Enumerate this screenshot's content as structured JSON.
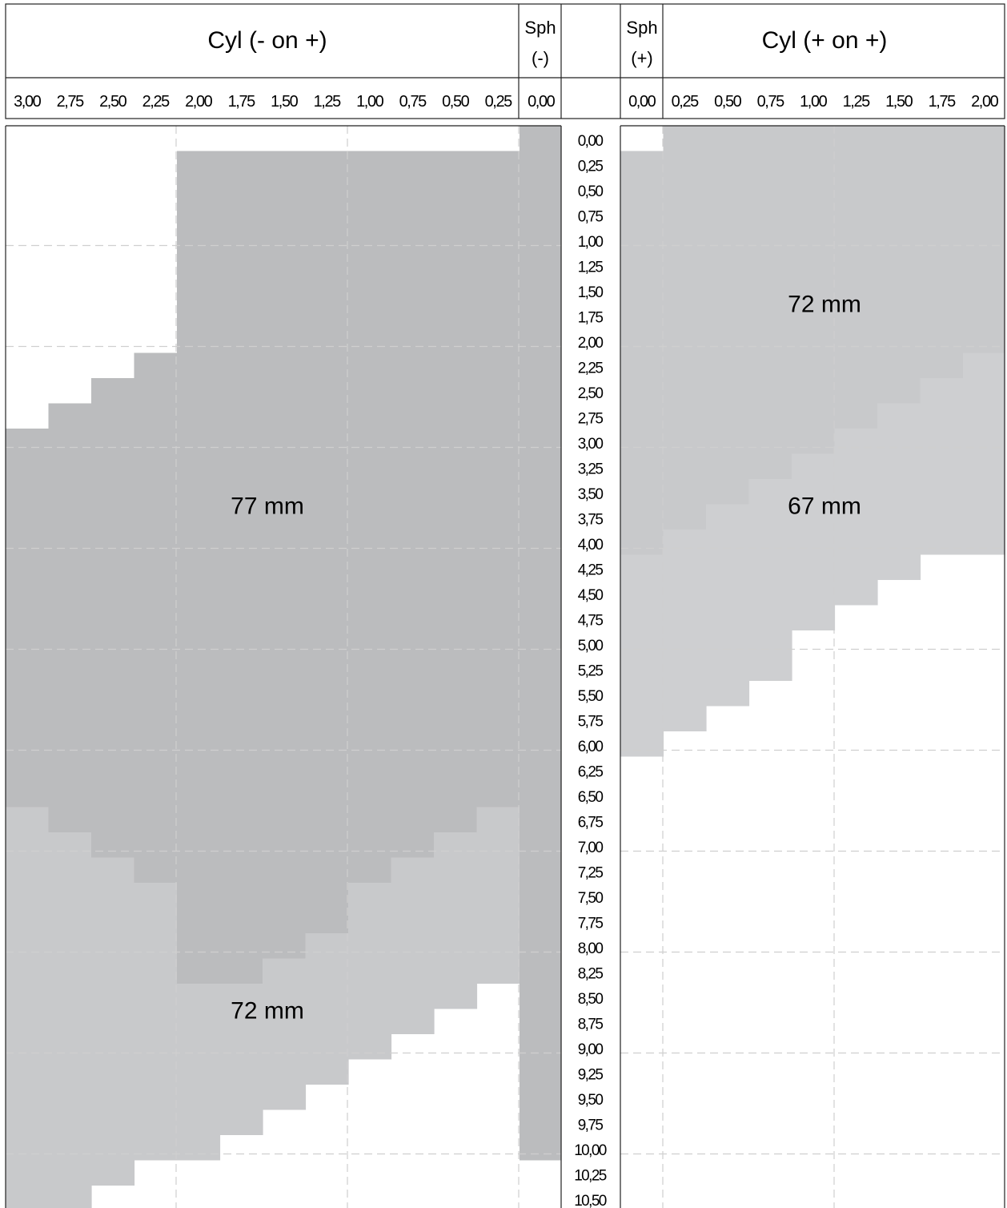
{
  "chart_data": {
    "type": "heatmap",
    "header": {
      "left_title": "Cyl (- on +)",
      "left_sph": [
        "Sph",
        "(-)"
      ],
      "right_sph": [
        "Sph",
        "(+)"
      ],
      "right_title": "Cyl (+ on +)"
    },
    "left_cyl_ticks": [
      "3,00",
      "2,75",
      "2,50",
      "2,25",
      "2,00",
      "1,75",
      "1,50",
      "1,25",
      "1,00",
      "0,75",
      "0,50",
      "0,25",
      "0,00"
    ],
    "right_cyl_ticks": [
      "0,00",
      "0,25",
      "0,50",
      "0,75",
      "1,00",
      "1,25",
      "1,50",
      "1,75",
      "2,00"
    ],
    "sph_ticks": [
      "0,00",
      "0,25",
      "0,50",
      "0,75",
      "1,00",
      "1,25",
      "1,50",
      "1,75",
      "2,00",
      "2,25",
      "2,50",
      "2,75",
      "3,00",
      "3,25",
      "3,50",
      "3,75",
      "4,00",
      "4,25",
      "4,50",
      "4,75",
      "5,00",
      "5,25",
      "5,50",
      "5,75",
      "6,00",
      "6,25",
      "6,50",
      "6,75",
      "7,00",
      "7,25",
      "7,50",
      "7,75",
      "8,00",
      "8,25",
      "8,50",
      "8,75",
      "9,00",
      "9,25",
      "9,50",
      "9,75",
      "10,00",
      "10,25",
      "10,50"
    ],
    "zones": [
      {
        "name": "77 mm",
        "color": "#bbbcbe"
      },
      {
        "name": "72 mm",
        "color": "#c8c9cb"
      },
      {
        "name": "67 mm",
        "color": "#cecfd1"
      }
    ],
    "left_panel": {
      "labels": [
        {
          "text": "77 mm",
          "cyl": 1.5,
          "sph": 3.75
        },
        {
          "text": "72 mm",
          "cyl": 1.5,
          "sph": 8.75
        }
      ],
      "zone_77_max_sph": [
        6.5,
        6.75,
        7.0,
        7.25,
        8.25,
        8.25,
        8.0,
        7.75,
        7.25,
        7.0,
        6.75,
        6.5,
        10.0
      ],
      "zone_77_min_sph": [
        3.0,
        2.75,
        2.5,
        2.25,
        0.25,
        0.25,
        0.25,
        0.25,
        0.25,
        0.25,
        0.25,
        0.25,
        0.0
      ],
      "zone_72_max_sph": [
        10.5,
        10.5,
        10.25,
        10.0,
        10.0,
        9.75,
        9.5,
        9.25,
        9.0,
        8.75,
        8.5,
        8.25,
        10.0
      ]
    },
    "right_panel": {
      "labels": [
        {
          "text": "72 mm",
          "cyl": 1.0,
          "sph": 1.75
        },
        {
          "text": "67 mm",
          "cyl": 1.0,
          "sph": 3.75
        }
      ],
      "zone_72_min_sph": [
        0.25,
        0.0,
        0.0,
        0.0,
        0.0,
        0.0,
        0.0,
        0.0,
        0.0
      ],
      "zone_72_max_sph": [
        4.0,
        3.75,
        3.5,
        3.25,
        3.0,
        2.75,
        2.5,
        2.25,
        2.0
      ],
      "zone_67_max_sph": [
        6.0,
        5.75,
        5.5,
        5.25,
        4.75,
        4.5,
        4.25,
        4.0,
        4.0
      ]
    },
    "grid": true
  }
}
